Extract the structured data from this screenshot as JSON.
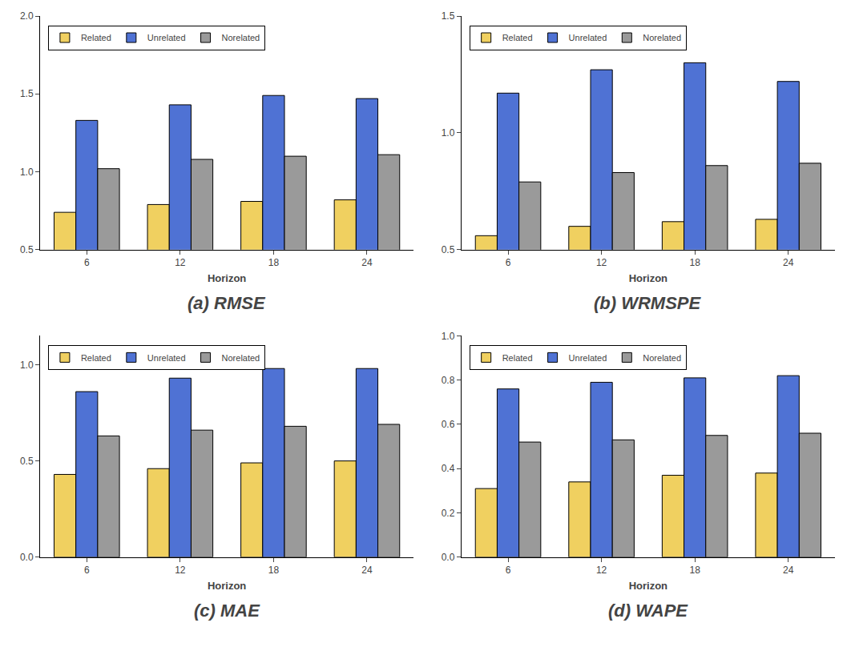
{
  "chart_data": [
    {
      "type": "bar",
      "title": "(a) RMSE",
      "x_label": "Horizon",
      "categories": [
        "6",
        "12",
        "18",
        "24"
      ],
      "series": [
        {
          "name": "Related",
          "color": "#F0D060",
          "values": [
            0.74,
            0.79,
            0.81,
            0.82
          ]
        },
        {
          "name": "Unrelated",
          "color": "#4F72D4",
          "values": [
            1.33,
            1.43,
            1.49,
            1.47
          ]
        },
        {
          "name": "Norelated",
          "color": "#9A9A9A",
          "values": [
            1.02,
            1.08,
            1.1,
            1.11
          ]
        }
      ],
      "ylim": [
        0.5,
        2.0
      ],
      "yticks": [
        0.5,
        {
          "value": 1.0,
          "label": "1.0"
        },
        1.5,
        {
          "value": 2.0,
          "label": "2.0"
        }
      ],
      "grid": false,
      "legend": "upper left"
    },
    {
      "type": "bar",
      "title": "(b) WRMSPE",
      "x_label": "Horizon",
      "categories": [
        "6",
        "12",
        "18",
        "24"
      ],
      "series": [
        {
          "name": "Related",
          "color": "#F0D060",
          "values": [
            0.56,
            0.6,
            0.62,
            0.63
          ]
        },
        {
          "name": "Unrelated",
          "color": "#4F72D4",
          "values": [
            1.17,
            1.27,
            1.3,
            1.22
          ]
        },
        {
          "name": "Norelated",
          "color": "#9A9A9A",
          "values": [
            0.79,
            0.83,
            0.86,
            0.87
          ]
        }
      ],
      "ylim": [
        0.5,
        1.5
      ],
      "yticks": [
        0.5,
        {
          "value": 1.0,
          "label": "1.0"
        },
        1.5
      ],
      "grid": false,
      "legend": "upper left"
    },
    {
      "type": "bar",
      "title": "(c) MAE",
      "x_label": "Horizon",
      "categories": [
        "6",
        "12",
        "18",
        "24"
      ],
      "series": [
        {
          "name": "Related",
          "color": "#F0D060",
          "values": [
            0.43,
            0.46,
            0.49,
            0.5
          ]
        },
        {
          "name": "Unrelated",
          "color": "#4F72D4",
          "values": [
            0.86,
            0.93,
            0.98,
            0.98
          ]
        },
        {
          "name": "Norelated",
          "color": "#9A9A9A",
          "values": [
            0.63,
            0.66,
            0.68,
            0.69
          ]
        }
      ],
      "ylim": [
        0.0,
        1.15
      ],
      "yticks": [
        {
          "value": 0.0,
          "label": "0.0"
        },
        0.5,
        {
          "value": 1.0,
          "label": "1.0"
        }
      ],
      "grid": false,
      "legend": "upper left"
    },
    {
      "type": "bar",
      "title": "(d) WAPE",
      "x_label": "Horizon",
      "categories": [
        "6",
        "12",
        "18",
        "24"
      ],
      "series": [
        {
          "name": "Related",
          "color": "#F0D060",
          "values": [
            0.31,
            0.34,
            0.37,
            0.38
          ]
        },
        {
          "name": "Unrelated",
          "color": "#4F72D4",
          "values": [
            0.76,
            0.79,
            0.81,
            0.82
          ]
        },
        {
          "name": "Norelated",
          "color": "#9A9A9A",
          "values": [
            0.52,
            0.53,
            0.55,
            0.56
          ]
        }
      ],
      "ylim": [
        0.0,
        1.0
      ],
      "yticks": [
        {
          "value": 0.0,
          "label": "0.0"
        },
        0.2,
        0.4,
        0.6,
        0.8,
        {
          "value": 1.0,
          "label": "1.0"
        }
      ],
      "grid": false,
      "legend": "upper left"
    }
  ]
}
